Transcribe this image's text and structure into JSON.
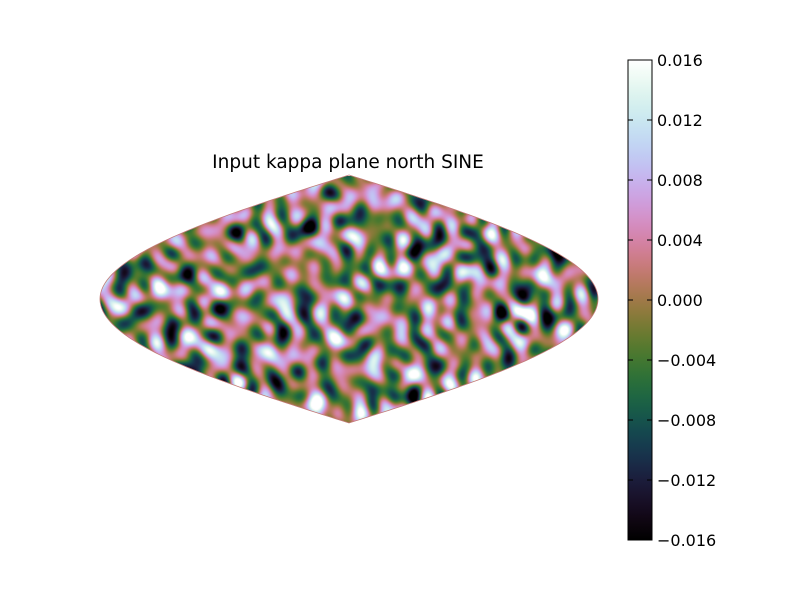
{
  "chart_data": {
    "type": "heatmap",
    "title": "Input kappa plane north SINE",
    "projection": "sinusoidal",
    "colormap": "cubehelix",
    "colorbar": {
      "min": -0.016,
      "max": 0.016,
      "ticks": [
        0.016,
        0.012,
        0.008,
        0.004,
        0.0,
        -0.004,
        -0.008,
        -0.012,
        -0.016
      ],
      "tick_labels": [
        "0.016",
        "0.012",
        "0.008",
        "0.004",
        "0.000",
        "−0.004",
        "−0.008",
        "−0.012",
        "−0.016"
      ],
      "location": "right"
    },
    "field_description": "random smooth noise field in kappa (convergence) values roughly within colorbar range",
    "xlabel": "",
    "ylabel": ""
  }
}
